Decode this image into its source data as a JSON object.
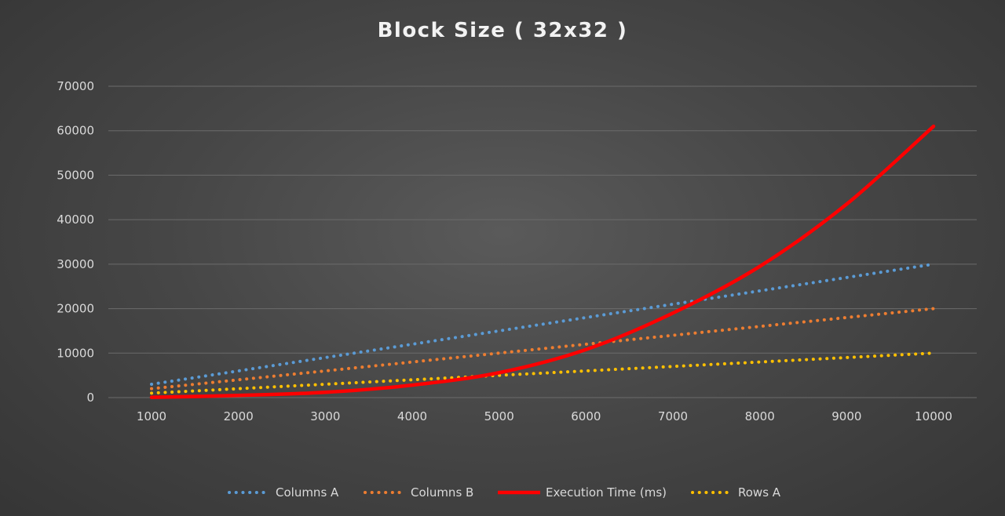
{
  "chart_data": {
    "type": "line",
    "title": "Block Size ( 32x32 )",
    "xlabel": "",
    "ylabel": "",
    "x": [
      1000,
      2000,
      3000,
      4000,
      5000,
      6000,
      7000,
      8000,
      9000,
      10000
    ],
    "y_ticks": [
      0,
      10000,
      20000,
      30000,
      40000,
      50000,
      60000,
      70000
    ],
    "ylim": [
      0,
      70000
    ],
    "grid": true,
    "legend_position": "bottom",
    "series": [
      {
        "name": "Columns A",
        "style": "dotted",
        "color": "#5b9bd5",
        "values": [
          3000,
          6000,
          9000,
          12000,
          15000,
          18000,
          21000,
          24000,
          27000,
          30000
        ]
      },
      {
        "name": "Columns B",
        "style": "dotted",
        "color": "#ed7d31",
        "values": [
          2000,
          4000,
          6000,
          8000,
          10000,
          12000,
          14000,
          16000,
          18000,
          20000
        ]
      },
      {
        "name": "Execution Time (ms)",
        "style": "solid",
        "color": "#ff0000",
        "values": [
          60,
          480,
          1200,
          2800,
          5600,
          10800,
          19000,
          29500,
          43500,
          61000
        ]
      },
      {
        "name": "Rows A",
        "style": "dotted",
        "color": "#ffc000",
        "values": [
          1000,
          2000,
          3000,
          4000,
          5000,
          6000,
          7000,
          8000,
          9000,
          10000
        ]
      }
    ]
  }
}
